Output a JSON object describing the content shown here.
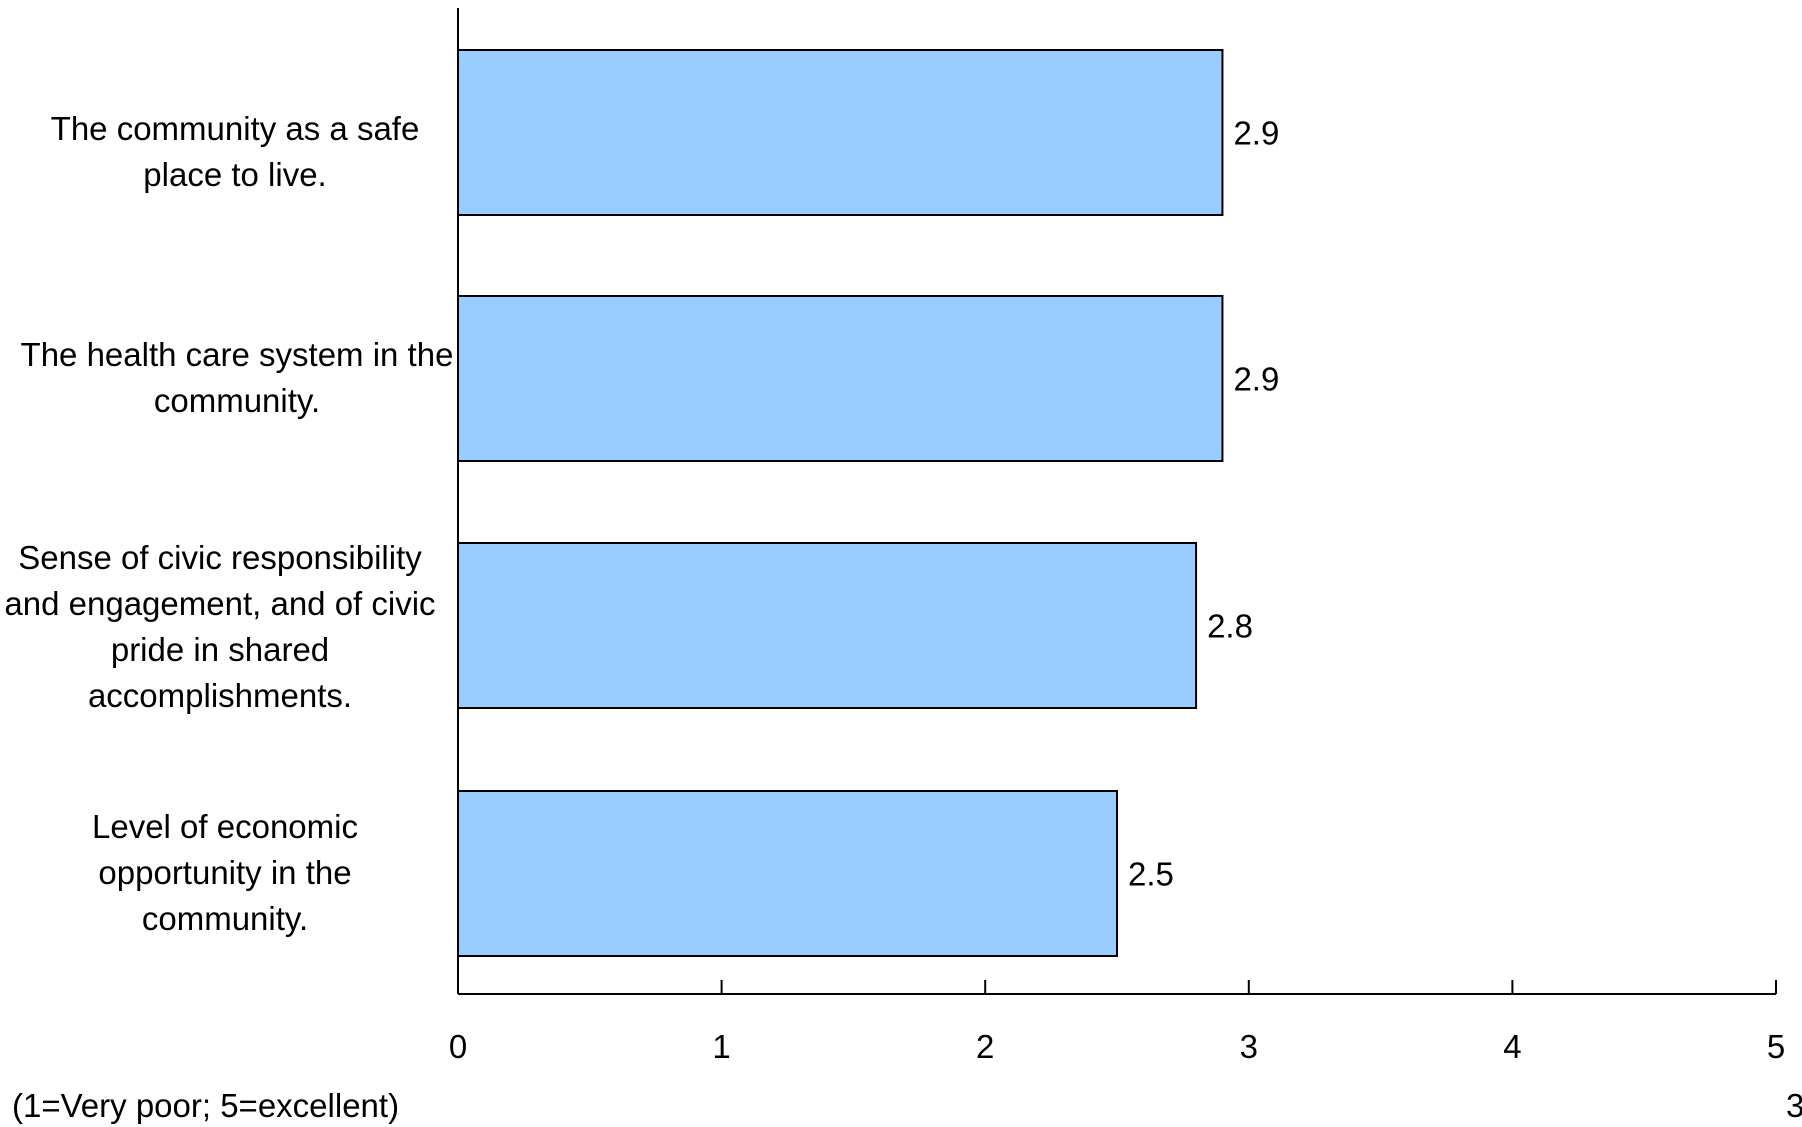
{
  "chart_data": {
    "type": "bar",
    "orientation": "horizontal",
    "categories": [
      "The community as a safe place to live.",
      "The health care system in the community.",
      "Sense of civic responsibility and engagement, and of civic pride in shared accomplishments.",
      "Level of economic opportunity in the community."
    ],
    "values": [
      2.9,
      2.9,
      2.8,
      2.5
    ],
    "data_labels": [
      "2.9",
      "2.9",
      "2.8",
      "2.5"
    ],
    "x_ticks": [
      "0",
      "1",
      "2",
      "3",
      "4",
      "5"
    ],
    "xlim": [
      0,
      5
    ],
    "grid": false,
    "legend": "none",
    "title": "",
    "xlabel": "",
    "ylabel": "",
    "bar_color": "#99CCFF",
    "bar_edge_color": "#000000"
  },
  "footer": {
    "scale_note": "(1=Very poor; 5=excellent)",
    "page_number": "3"
  }
}
